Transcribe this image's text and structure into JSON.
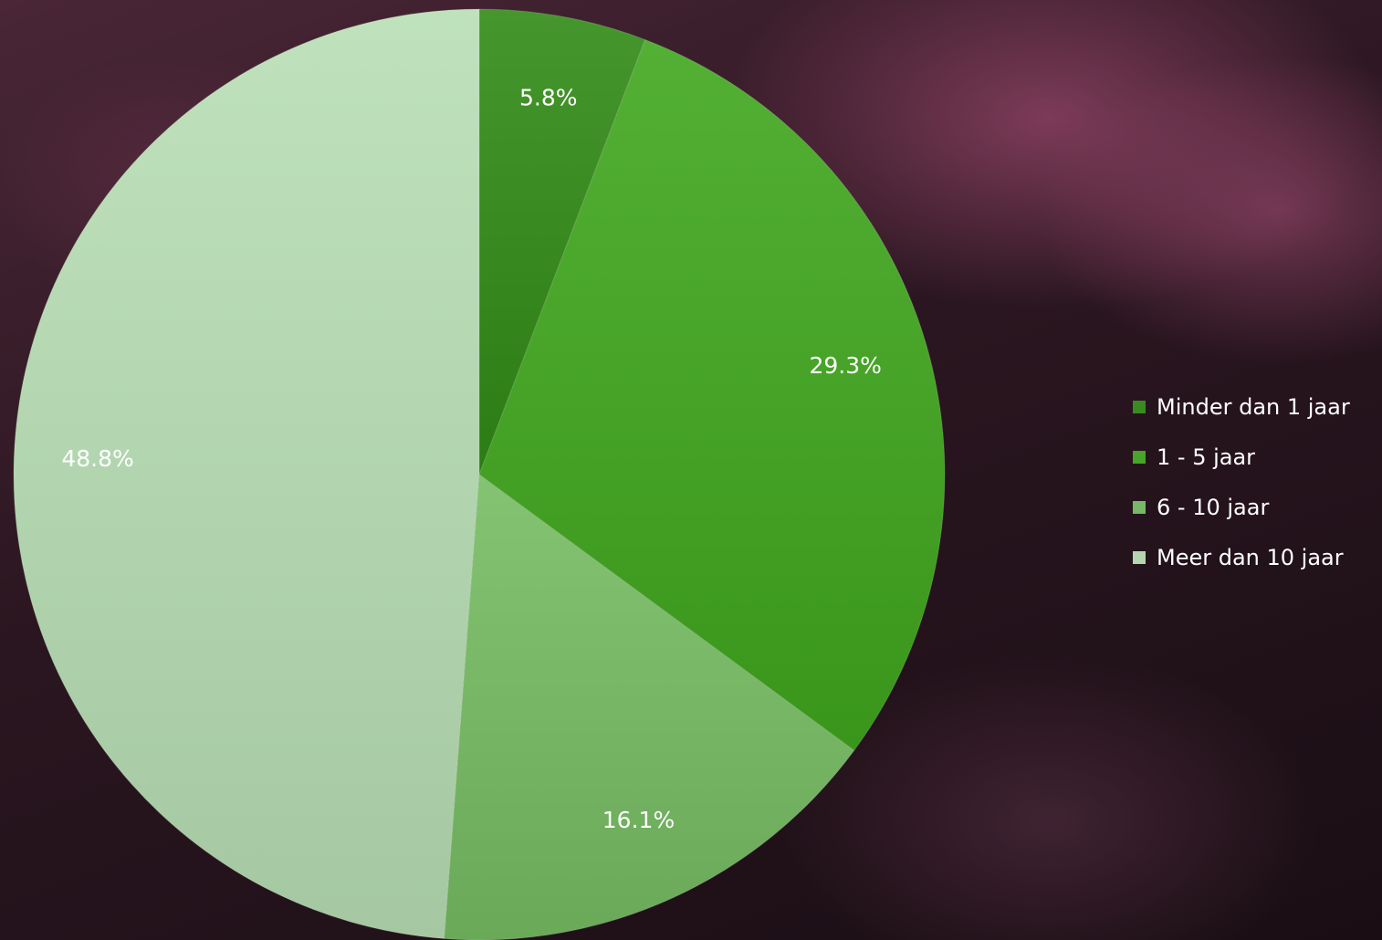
{
  "chart_data": {
    "type": "pie",
    "title": "",
    "categories": [
      "Minder dan 1 jaar",
      "1 - 5 jaar",
      "6 - 10 jaar",
      "Meer dan 10 jaar"
    ],
    "values": [
      5.8,
      29.3,
      16.1,
      48.8
    ],
    "labels": [
      "5.8%",
      "29.3%",
      "16.1%",
      "48.8%"
    ],
    "colors": [
      "#3a8a22",
      "#47a428",
      "#77b766",
      "#b3d6b0"
    ],
    "legend_position": "right"
  }
}
